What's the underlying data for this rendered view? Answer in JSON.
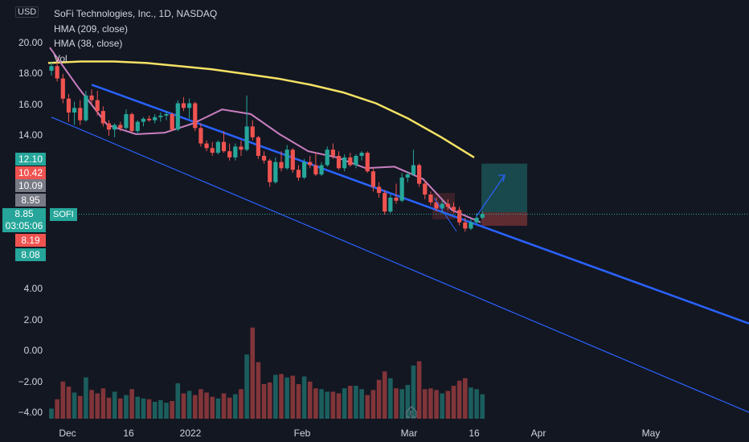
{
  "header": {
    "title": "SoFi Technologies, Inc., 1D, NASDAQ",
    "currency": "USD",
    "indicators": [
      "HMA (209, close)",
      "HMA (38, close)",
      "Vol"
    ]
  },
  "price_axis": {
    "ticks": [
      "20.00",
      "18.00",
      "16.00",
      "14.00",
      "4.00",
      "2.00",
      "0.00",
      "−2.00",
      "−4.00"
    ],
    "badges": [
      {
        "label": "12.10",
        "color": "#26a69a"
      },
      {
        "label": "10.42",
        "color": "#ef5350"
      },
      {
        "label": "10.09",
        "color": "#787b86"
      },
      {
        "label": "8.95",
        "color": "#787b86"
      },
      {
        "label": "8.19",
        "color": "#ef5350"
      },
      {
        "label": "8.08",
        "color": "#26a69a"
      }
    ],
    "current": {
      "price": "8.85",
      "countdown": "03:05:06",
      "symbol": "SOFI"
    }
  },
  "time_axis": {
    "labels": [
      "Dec",
      "16",
      "2022",
      "Feb",
      "Mar",
      "16",
      "Apr",
      "May"
    ]
  },
  "colors": {
    "up": "#26a69a",
    "down": "#ef5350",
    "hma209": "#f5e264",
    "hma38": "#c97fc0",
    "channel": "#2962ff",
    "bg": "#131722"
  },
  "chart_data": {
    "type": "candlestick",
    "symbol": "SOFI",
    "interval": "1D",
    "price_range": [
      -4.8,
      21.5
    ],
    "candles": [
      [
        18.1,
        18.7,
        17.8,
        18.4
      ],
      [
        18.4,
        18.9,
        17.4,
        17.6
      ],
      [
        17.6,
        17.9,
        16.0,
        16.3
      ],
      [
        16.3,
        16.6,
        14.8,
        15.4
      ],
      [
        15.4,
        16.1,
        14.6,
        15.7
      ],
      [
        15.7,
        16.2,
        14.6,
        14.9
      ],
      [
        14.9,
        16.8,
        14.8,
        16.5
      ],
      [
        16.5,
        16.9,
        15.9,
        16.2
      ],
      [
        16.2,
        16.8,
        15.2,
        15.5
      ],
      [
        15.5,
        15.8,
        14.5,
        14.7
      ],
      [
        14.7,
        14.9,
        13.9,
        14.3
      ],
      [
        14.3,
        14.7,
        13.8,
        14.6
      ],
      [
        14.6,
        14.8,
        14.2,
        14.4
      ],
      [
        14.4,
        15.6,
        14.3,
        15.3
      ],
      [
        15.3,
        15.4,
        14.1,
        14.2
      ],
      [
        14.2,
        14.9,
        14.0,
        14.8
      ],
      [
        14.8,
        15.1,
        14.5,
        15.0
      ],
      [
        15.0,
        15.2,
        14.8,
        14.9
      ],
      [
        14.9,
        15.3,
        14.7,
        15.1
      ],
      [
        15.1,
        15.4,
        14.8,
        15.2
      ],
      [
        15.2,
        15.5,
        14.9,
        15.3
      ],
      [
        15.3,
        15.4,
        14.2,
        14.3
      ],
      [
        14.3,
        16.2,
        14.2,
        16.0
      ],
      [
        16.0,
        16.4,
        15.5,
        15.7
      ],
      [
        15.7,
        16.3,
        15.0,
        16.0
      ],
      [
        16.0,
        16.1,
        14.2,
        14.4
      ],
      [
        14.4,
        14.7,
        13.2,
        13.4
      ],
      [
        13.4,
        13.6,
        12.9,
        13.1
      ],
      [
        13.1,
        13.5,
        12.6,
        12.8
      ],
      [
        12.8,
        13.6,
        12.7,
        13.5
      ],
      [
        13.5,
        14.2,
        12.8,
        12.9
      ],
      [
        12.9,
        13.4,
        12.3,
        12.5
      ],
      [
        12.5,
        13.4,
        12.3,
        13.2
      ],
      [
        13.2,
        13.6,
        12.6,
        13.0
      ],
      [
        13.0,
        16.5,
        12.9,
        14.5
      ],
      [
        14.5,
        14.9,
        13.6,
        13.8
      ],
      [
        13.8,
        13.9,
        12.4,
        12.6
      ],
      [
        12.6,
        12.9,
        12.1,
        12.3
      ],
      [
        12.3,
        12.4,
        10.6,
        10.9
      ],
      [
        10.9,
        12.5,
        10.8,
        12.2
      ],
      [
        12.2,
        12.9,
        11.6,
        11.8
      ],
      [
        11.8,
        13.3,
        11.7,
        13.0
      ],
      [
        13.0,
        13.1,
        11.5,
        11.7
      ],
      [
        11.7,
        12.0,
        11.0,
        11.2
      ],
      [
        11.2,
        12.4,
        11.1,
        12.2
      ],
      [
        12.2,
        12.6,
        11.8,
        12.0
      ],
      [
        12.0,
        12.8,
        11.3,
        11.4
      ],
      [
        11.4,
        12.2,
        11.3,
        12.0
      ],
      [
        12.0,
        13.2,
        11.9,
        13.0
      ],
      [
        13.0,
        13.4,
        12.4,
        12.6
      ],
      [
        12.6,
        12.9,
        11.7,
        11.8
      ],
      [
        11.8,
        12.7,
        11.6,
        12.5
      ],
      [
        12.5,
        12.8,
        11.9,
        12.0
      ],
      [
        12.0,
        12.7,
        11.8,
        12.6
      ],
      [
        12.6,
        12.9,
        12.3,
        12.8
      ],
      [
        12.8,
        12.9,
        11.5,
        11.6
      ],
      [
        11.6,
        11.8,
        10.3,
        10.6
      ],
      [
        10.6,
        10.9,
        9.9,
        10.2
      ],
      [
        10.2,
        10.4,
        8.8,
        9.0
      ],
      [
        9.0,
        10.1,
        8.9,
        9.9
      ],
      [
        9.9,
        10.8,
        9.5,
        9.7
      ],
      [
        9.7,
        11.5,
        9.6,
        11.2
      ],
      [
        11.2,
        11.6,
        10.9,
        11.4
      ],
      [
        11.4,
        13.0,
        11.3,
        12.0
      ],
      [
        12.0,
        12.1,
        10.6,
        10.8
      ],
      [
        10.8,
        11.0,
        9.8,
        10.1
      ],
      [
        10.1,
        10.3,
        9.4,
        9.6
      ],
      [
        9.6,
        9.9,
        9.0,
        9.2
      ],
      [
        9.2,
        9.7,
        8.9,
        9.5
      ],
      [
        9.5,
        9.8,
        9.1,
        9.3
      ],
      [
        9.3,
        9.6,
        8.9,
        9.1
      ],
      [
        9.1,
        9.3,
        8.1,
        8.3
      ],
      [
        8.3,
        8.6,
        7.7,
        7.9
      ],
      [
        7.9,
        8.5,
        7.8,
        8.3
      ],
      [
        8.3,
        8.9,
        8.2,
        8.6
      ],
      [
        8.6,
        9.0,
        8.5,
        8.85
      ]
    ],
    "volume": [
      1.2,
      2.3,
      4.4,
      3.8,
      3.1,
      2.7,
      4.9,
      3.4,
      3.0,
      3.6,
      2.5,
      3.2,
      2.4,
      2.8,
      3.5,
      2.6,
      2.4,
      2.3,
      2.0,
      2.2,
      1.9,
      2.1,
      4.2,
      3.0,
      3.3,
      2.8,
      3.5,
      3.1,
      2.6,
      2.4,
      3.0,
      2.5,
      2.9,
      3.5,
      7.6,
      10.8,
      6.7,
      4.1,
      4.3,
      5.2,
      5.3,
      4.9,
      5.1,
      4.1,
      5.0,
      4.4,
      3.6,
      3.5,
      3.2,
      3.2,
      3.0,
      3.6,
      3.9,
      3.9,
      3.5,
      2.8,
      3.4,
      4.6,
      5.6,
      4.8,
      3.6,
      3.5,
      4.0,
      6.3,
      6.8,
      3.5,
      3.6,
      3.4,
      3.0,
      3.3,
      3.9,
      4.5,
      4.8,
      3.7,
      3.5,
      2.9
    ],
    "series": [
      {
        "name": "HMA (209, close)",
        "values": [
          18.6,
          18.7,
          18.7,
          18.6,
          18.4,
          18.2,
          17.9,
          17.6,
          17.2,
          16.7,
          16.0,
          15.0,
          13.8,
          12.5
        ]
      },
      {
        "name": "HMA (38, close)",
        "values": [
          19.6,
          17.0,
          14.6,
          14.0,
          14.1,
          14.7,
          15.6,
          15.3,
          14.0,
          12.9,
          12.5,
          11.8,
          11.9,
          11.1,
          9.1,
          8.3
        ]
      }
    ],
    "channel": {
      "upper": [
        [
          7,
          17.2
        ],
        [
          70,
          8.7
        ]
      ],
      "lower": [
        [
          0,
          15.1
        ],
        [
          70,
          4.1
        ]
      ]
    },
    "long_position": {
      "target": 12.1,
      "entry": 8.95,
      "stop": 8.08
    }
  }
}
